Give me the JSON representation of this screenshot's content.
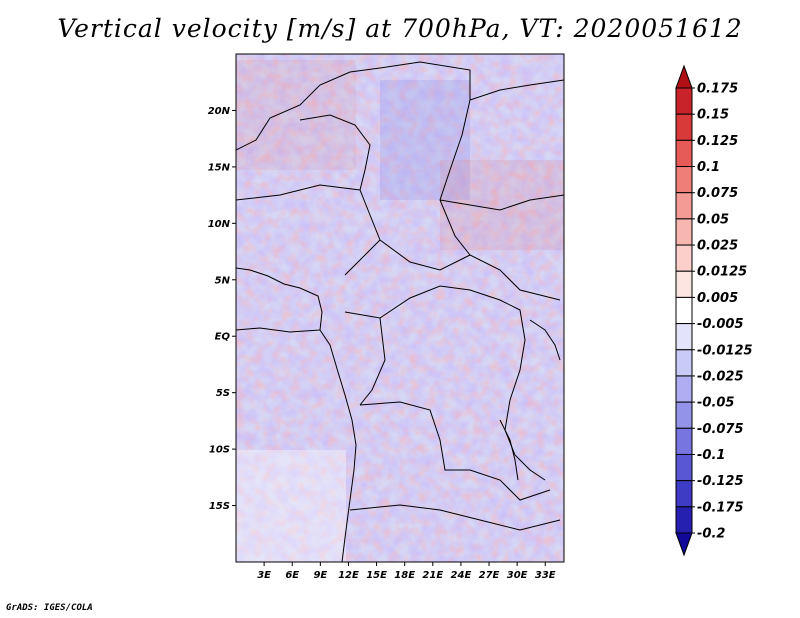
{
  "title": "Vertical velocity [m/s] at 700hPa, VT: 2020051612",
  "footer": "GrADS: IGES/COLA",
  "map": {
    "lat_labels": [
      "20N",
      "15N",
      "10N",
      "5N",
      "EQ",
      "5S",
      "10S",
      "15S"
    ],
    "lon_labels": [
      "3E",
      "6E",
      "9E",
      "12E",
      "15E",
      "18E",
      "21E",
      "24E",
      "27E",
      "30E",
      "33E"
    ],
    "lat_range": [
      -20,
      25
    ],
    "lon_range": [
      0,
      35
    ]
  },
  "colorbar": {
    "labels": [
      "0.175",
      "0.15",
      "0.125",
      "0.1",
      "0.075",
      "0.05",
      "0.025",
      "0.0125",
      "0.005",
      "-0.005",
      "-0.0125",
      "-0.025",
      "-0.05",
      "-0.075",
      "-0.1",
      "-0.125",
      "-0.175",
      "-0.2"
    ],
    "colors": [
      "#b00f14",
      "#c8232a",
      "#d83a3a",
      "#e65a58",
      "#ef7d78",
      "#f49b95",
      "#f8b6b0",
      "#fbcfca",
      "#fde5e2",
      "#ffffff",
      "#e3e3fb",
      "#cacaf7",
      "#afaef2",
      "#9493ea",
      "#7775e0",
      "#5a57d4",
      "#3e3cc4",
      "#2620b0",
      "#12089a"
    ]
  }
}
